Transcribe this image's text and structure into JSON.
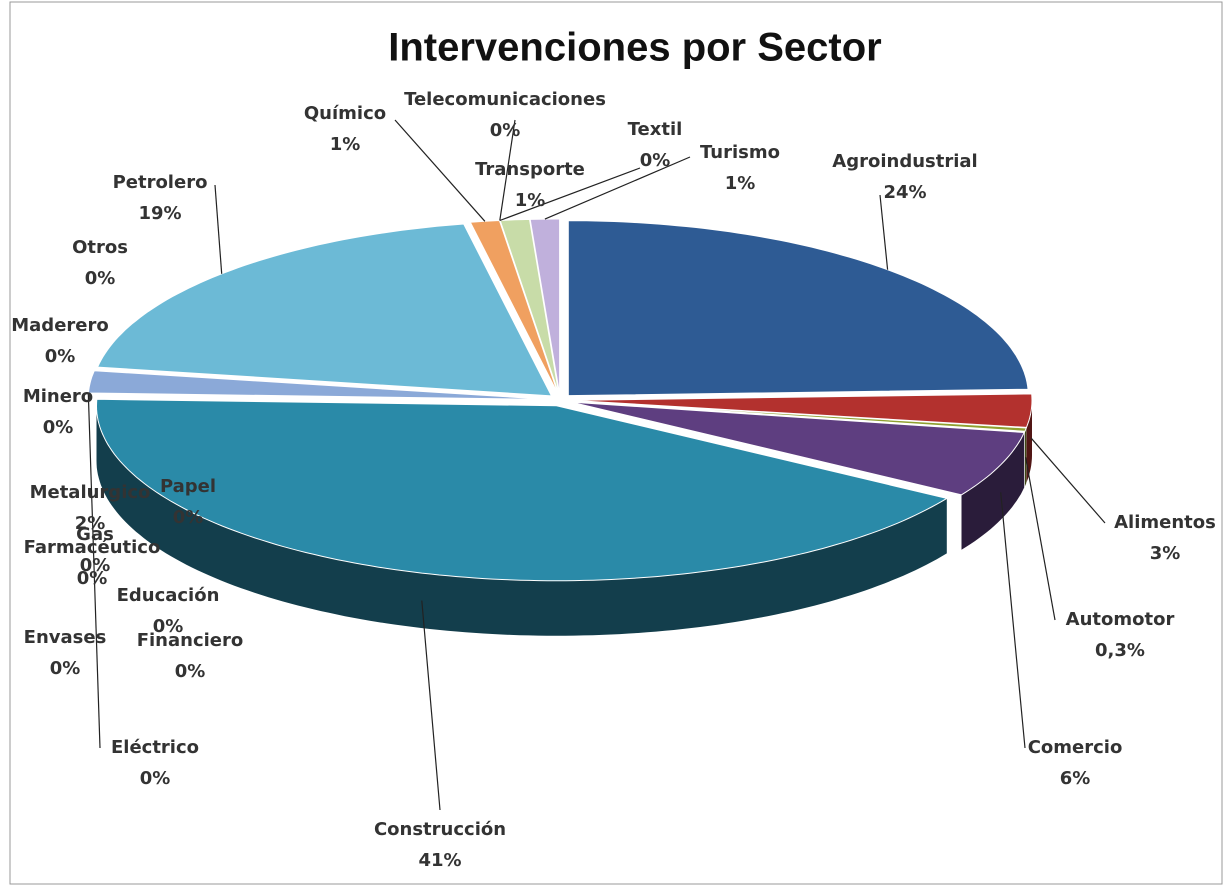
{
  "chart_data": {
    "type": "pie",
    "title": "Intervenciones por Sector",
    "categories": [
      "Agroindustrial",
      "Alimentos",
      "Automotor",
      "Comercio",
      "Construcción",
      "Educación",
      "Eléctrico",
      "Envases",
      "Farmacéutico",
      "Financiero",
      "Gas",
      "Maderero",
      "Metalurgico",
      "Minero",
      "Otros",
      "Papel",
      "Petrolero",
      "Químico",
      "Telecomunicaciones",
      "Textil",
      "Transporte",
      "Turismo"
    ],
    "values": [
      24,
      3,
      0.3,
      6,
      41,
      0,
      0,
      0,
      0,
      0,
      0,
      0,
      2,
      0,
      0,
      0,
      19,
      1,
      0,
      0,
      1,
      1
    ],
    "value_labels": [
      "24%",
      "3%",
      "0,3%",
      "6%",
      "41%",
      "0%",
      "0%",
      "0%",
      "0%",
      "0%",
      "0%",
      "0%",
      "2%",
      "0%",
      "0%",
      "0%",
      "19%",
      "1%",
      "0%",
      "0%",
      "1%",
      "1%"
    ],
    "colors": [
      "#2e5b94",
      "#b3312e",
      "#8fa030",
      "#5e3e80",
      "#2a8aa8",
      "#d37a2c",
      "#3e6aa8",
      "#b54a4a",
      "#8aa850",
      "#6f55a0",
      "#3fa0c0",
      "#e09040",
      "#8ba9d8",
      "#d88a8a",
      "#b8cc90",
      "#a898c8",
      "#6cbad6",
      "#f0a060",
      "#9ab0e0",
      "#e8a8a8",
      "#c8dca8",
      "#c0b0dc"
    ]
  }
}
